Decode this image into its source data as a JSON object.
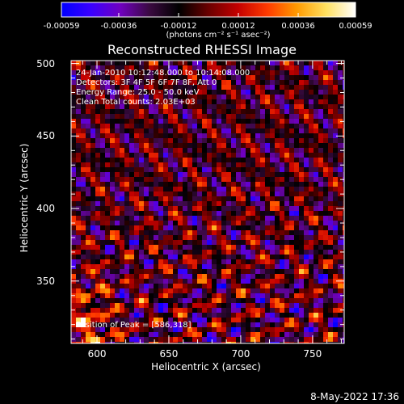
{
  "colorbar": {
    "ticks": [
      "-0.00059",
      "-0.00036",
      "-0.00012",
      "0.00012",
      "0.00036",
      "0.00059"
    ],
    "tick_values": [
      -0.00059,
      -0.00036,
      -0.00012,
      0.00012,
      0.00036,
      0.00059
    ],
    "unit_label": "(photons cm⁻² s⁻¹ asec⁻²)",
    "colors": [
      "#0000ff",
      "#3a00ff",
      "#7000c0",
      "#3a0a40",
      "#000000",
      "#6a0000",
      "#c40000",
      "#ff3a00",
      "#ff9a00",
      "#ffe060",
      "#ffffff"
    ]
  },
  "chart_data": {
    "type": "heatmap",
    "title": "Reconstructed RHESSI Image",
    "xlabel": "Heliocentric X (arcsec)",
    "ylabel": "Heliocentric Y (arcsec)",
    "xlim": [
      582,
      772
    ],
    "ylim": [
      307,
      502
    ],
    "xticks": [
      "600",
      "650",
      "700",
      "750"
    ],
    "xtick_values": [
      600,
      650,
      700,
      750
    ],
    "yticks": [
      "350",
      "400",
      "450",
      "500"
    ],
    "ytick_values": [
      350,
      400,
      450,
      500
    ],
    "value_range": [
      -0.00059,
      0.00059
    ],
    "peak": {
      "x": 586,
      "y": 318
    },
    "annotations": {
      "time": "24-Jan-2010 10:12:48.000 to 10:14:08.000",
      "detectors": "Detectors: 3F 4F 5F 6F 7F 8F, Att 0",
      "energy": "Energy Range: 25.0 - 50.0 keV",
      "clean": "Clean     Total counts: 2.03E+03",
      "peak_text": "Position of Peak = [586,318]"
    }
  },
  "footer": {
    "date": "8-May-2022 17:36"
  }
}
